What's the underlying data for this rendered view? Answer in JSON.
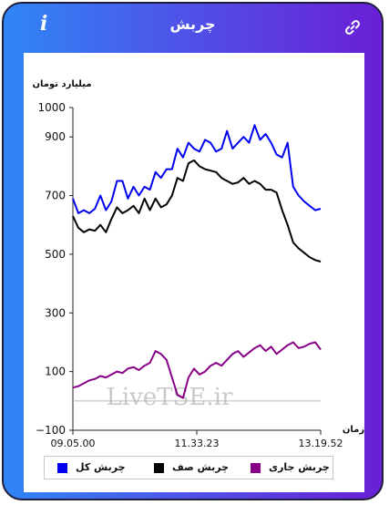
{
  "header": {
    "title": "چربش",
    "info_label": "i"
  },
  "watermark": "LiveTSE.ir",
  "chart_data": {
    "type": "line",
    "title": "",
    "ylabel": "میلیارد تومان",
    "xlabel": "زمان",
    "ylim": [
      -100,
      1000
    ],
    "yticks": [
      -100,
      100,
      300,
      500,
      700,
      900,
      1000
    ],
    "xticks": [
      "09.05.00",
      "11.33.23",
      "13.19.52"
    ],
    "grid": false,
    "legend_position": "bottom",
    "series": [
      {
        "name": "چربش کل",
        "color": "#0000ee",
        "values": [
          690,
          640,
          650,
          640,
          655,
          700,
          650,
          680,
          750,
          750,
          690,
          730,
          700,
          730,
          720,
          780,
          760,
          790,
          790,
          860,
          830,
          880,
          860,
          850,
          890,
          880,
          850,
          860,
          920,
          860,
          880,
          900,
          880,
          940,
          890,
          910,
          880,
          840,
          830,
          880,
          730,
          700,
          680,
          665,
          650,
          655
        ]
      },
      {
        "name": "چربش صف",
        "color": "#000000",
        "values": [
          630,
          590,
          575,
          585,
          580,
          600,
          575,
          620,
          660,
          640,
          650,
          665,
          640,
          690,
          650,
          690,
          660,
          670,
          700,
          760,
          750,
          810,
          820,
          800,
          790,
          785,
          780,
          760,
          750,
          740,
          745,
          760,
          740,
          750,
          740,
          720,
          720,
          710,
          650,
          600,
          540,
          520,
          505,
          490,
          480,
          475
        ]
      },
      {
        "name": "چربش جاری",
        "color": "#880088",
        "values": [
          45,
          50,
          60,
          70,
          75,
          85,
          80,
          90,
          100,
          95,
          110,
          115,
          105,
          120,
          130,
          170,
          160,
          140,
          80,
          20,
          10,
          80,
          110,
          90,
          100,
          120,
          130,
          120,
          140,
          160,
          170,
          150,
          165,
          180,
          190,
          170,
          185,
          160,
          175,
          190,
          200,
          180,
          185,
          195,
          200,
          175
        ]
      }
    ]
  }
}
